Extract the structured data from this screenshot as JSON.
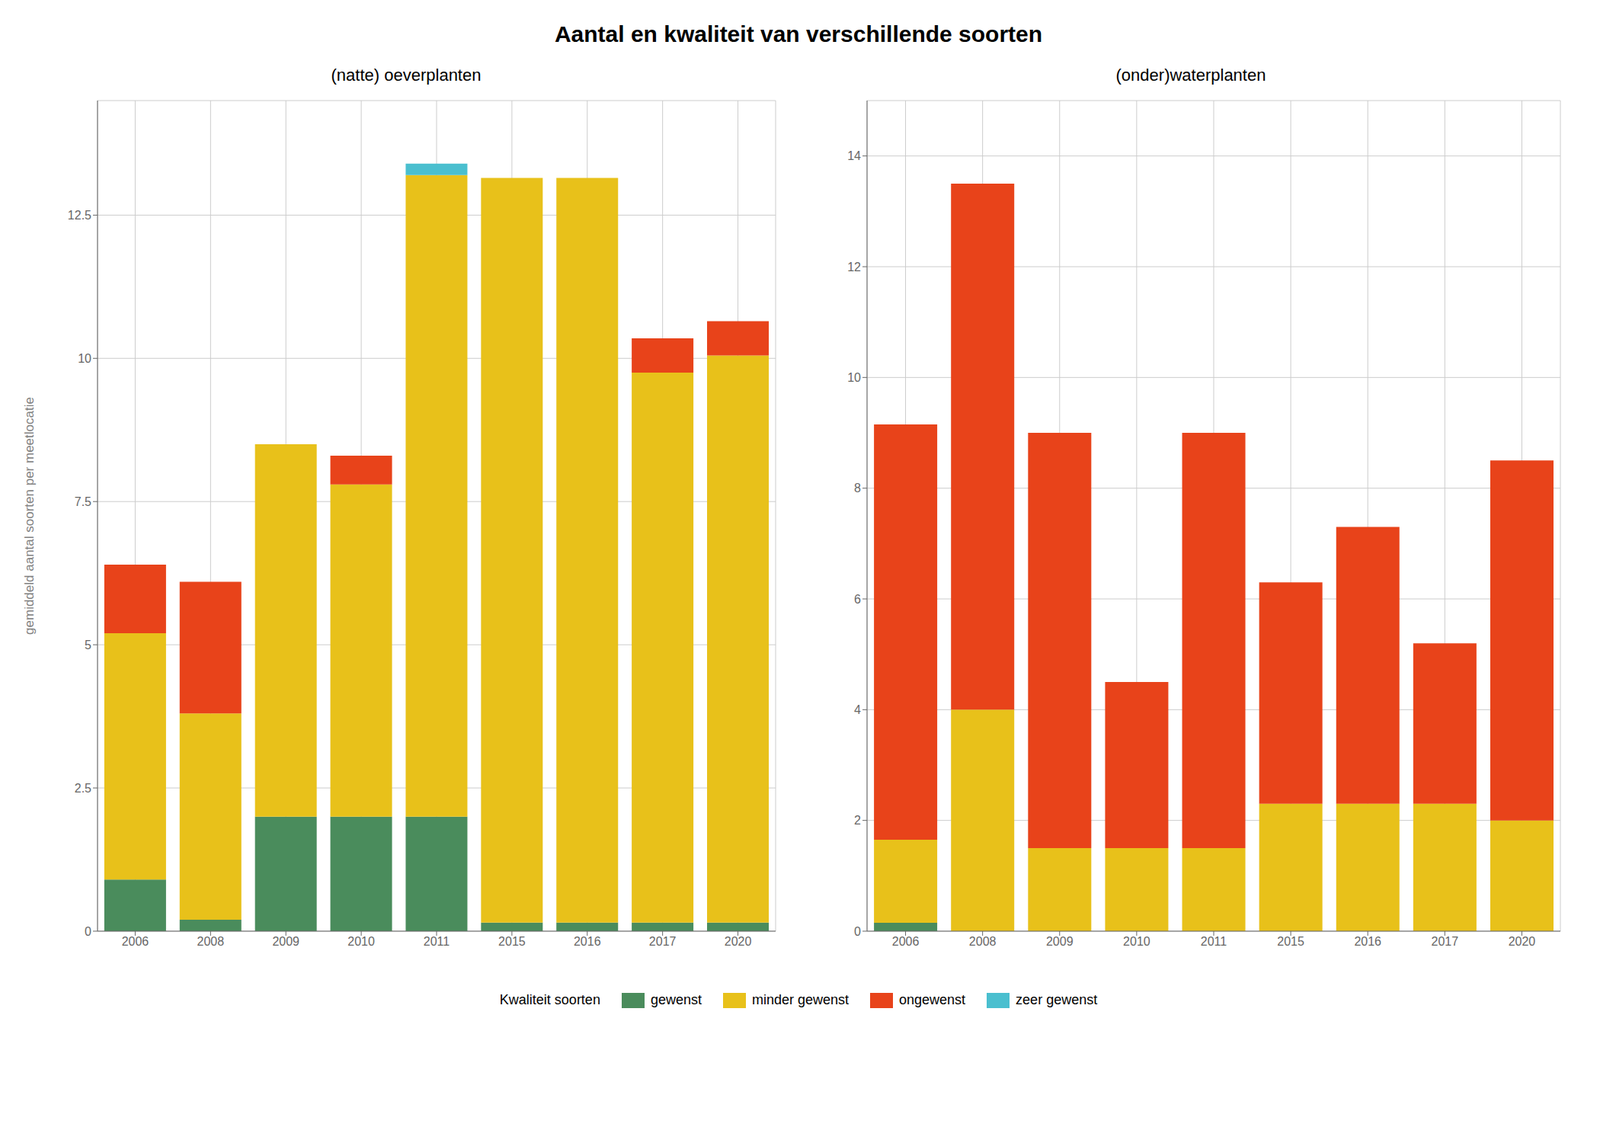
{
  "title": "Aantal en kwaliteit van verschillende soorten",
  "legend_title": "Kwaliteit soorten",
  "chart_data": [
    {
      "type": "bar",
      "stacked": true,
      "title": "(natte) oeverplanten",
      "ylabel": "gemiddeld aantal soorten per meetlocatie",
      "categories": [
        "2006",
        "2008",
        "2009",
        "2010",
        "2011",
        "2015",
        "2016",
        "2017",
        "2020"
      ],
      "series": [
        {
          "name": "gewenst",
          "color": "#4A8C5C",
          "values": [
            0.9,
            0.2,
            2.0,
            2.0,
            2.0,
            0.15,
            0.15,
            0.15,
            0.15
          ]
        },
        {
          "name": "minder gewenst",
          "color": "#E8C11A",
          "values": [
            4.3,
            3.6,
            6.5,
            5.8,
            11.2,
            13.0,
            13.0,
            9.6,
            9.9
          ]
        },
        {
          "name": "ongewenst",
          "color": "#E8431A",
          "values": [
            1.2,
            2.3,
            0.0,
            0.5,
            0.0,
            0.0,
            0.0,
            0.6,
            0.6
          ]
        },
        {
          "name": "zeer gewenst",
          "color": "#4ABFCF",
          "values": [
            0.0,
            0.0,
            0.0,
            0.0,
            0.2,
            0.0,
            0.0,
            0.0,
            0.0
          ]
        }
      ],
      "ylim": [
        0,
        14.5
      ],
      "yticks": [
        0,
        2.5,
        5,
        7.5,
        10,
        12.5
      ],
      "grid": true
    },
    {
      "type": "bar",
      "stacked": true,
      "title": "(onder)waterplanten",
      "categories": [
        "2006",
        "2008",
        "2009",
        "2010",
        "2011",
        "2015",
        "2016",
        "2017",
        "2020"
      ],
      "series": [
        {
          "name": "gewenst",
          "color": "#4A8C5C",
          "values": [
            0.15,
            0.0,
            0.0,
            0.0,
            0.0,
            0.0,
            0.0,
            0.0,
            0.0
          ]
        },
        {
          "name": "minder gewenst",
          "color": "#E8C11A",
          "values": [
            1.5,
            4.0,
            1.5,
            1.5,
            1.5,
            2.3,
            2.3,
            2.3,
            2.0
          ]
        },
        {
          "name": "ongewenst",
          "color": "#E8431A",
          "values": [
            7.5,
            9.5,
            7.5,
            3.0,
            7.5,
            4.0,
            5.0,
            2.9,
            6.5
          ]
        },
        {
          "name": "zeer gewenst",
          "color": "#4ABFCF",
          "values": [
            0.0,
            0.0,
            0.0,
            0.0,
            0.0,
            0.0,
            0.0,
            0.0,
            0.0
          ]
        }
      ],
      "ylim": [
        0,
        15
      ],
      "yticks": [
        0,
        2,
        4,
        6,
        8,
        10,
        12,
        14
      ],
      "grid": true
    }
  ]
}
